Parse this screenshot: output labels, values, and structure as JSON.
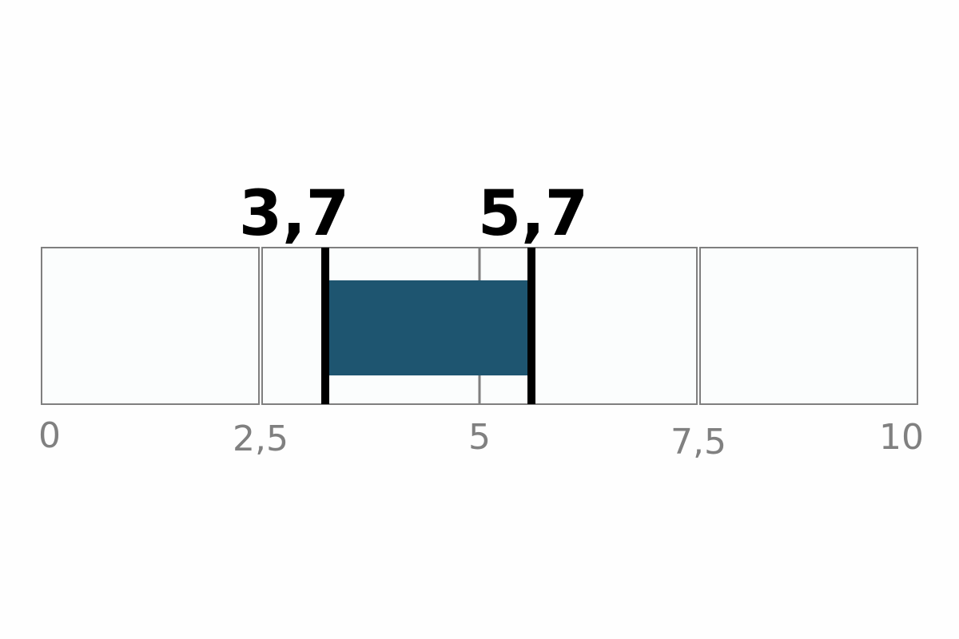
{
  "chart_data": {
    "type": "bar",
    "orientation": "horizontal",
    "xlim": [
      0,
      10
    ],
    "ticks": [
      "0",
      "2,5",
      "5",
      "7,5",
      "10"
    ],
    "tick_values": [
      0,
      2.5,
      5,
      7.5,
      10
    ],
    "range": {
      "start": 3.7,
      "end": 5.7
    },
    "range_labels": [
      "3,7",
      "5,7"
    ],
    "colors": {
      "range_fill": "#1e5570",
      "markers": "#000000",
      "track_border": "#7f7f7f",
      "track_fill": "#fbfdfd",
      "tick_text": "#808080"
    }
  }
}
